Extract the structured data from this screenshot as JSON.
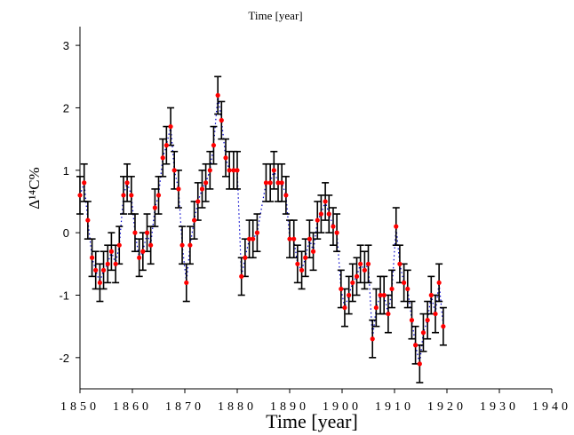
{
  "chart_data": {
    "type": "scatter",
    "top_title": "Time [year]",
    "xlabel": "Time [year]",
    "ylabel": "Δ¹⁴C%",
    "xlim": [
      1850,
      1940
    ],
    "ylim": [
      -2.5,
      3.3
    ],
    "x_ticks": [
      1850,
      1860,
      1870,
      1880,
      1890,
      1900,
      1910,
      1920,
      1930,
      1940
    ],
    "y_ticks": [
      3,
      2,
      1,
      0,
      -1,
      -2
    ],
    "colors": {
      "points": "#ff0000",
      "trend": "#0000cc",
      "error_bars": "#000000"
    },
    "series": [
      {
        "points": [
          {
            "x": 1850.0,
            "y": 0.6,
            "err": 0.3
          },
          {
            "x": 1850.8,
            "y": 0.8,
            "err": 0.3
          },
          {
            "x": 1851.5,
            "y": 0.2,
            "err": 0.3
          },
          {
            "x": 1852.3,
            "y": -0.4,
            "err": 0.3
          },
          {
            "x": 1853.0,
            "y": -0.6,
            "err": 0.3
          },
          {
            "x": 1853.8,
            "y": -0.8,
            "err": 0.3
          },
          {
            "x": 1854.5,
            "y": -0.6,
            "err": 0.3
          },
          {
            "x": 1855.3,
            "y": -0.5,
            "err": 0.3
          },
          {
            "x": 1856.0,
            "y": -0.3,
            "err": 0.3
          },
          {
            "x": 1856.8,
            "y": -0.5,
            "err": 0.3
          },
          {
            "x": 1857.5,
            "y": -0.2,
            "err": 0.3
          },
          {
            "x": 1858.3,
            "y": 0.6,
            "err": 0.3
          },
          {
            "x": 1859.0,
            "y": 0.8,
            "err": 0.3
          },
          {
            "x": 1859.8,
            "y": 0.6,
            "err": 0.3
          },
          {
            "x": 1860.5,
            "y": 0.0,
            "err": 0.3
          },
          {
            "x": 1861.3,
            "y": -0.4,
            "err": 0.3
          },
          {
            "x": 1862.0,
            "y": -0.3,
            "err": 0.3
          },
          {
            "x": 1862.8,
            "y": 0.0,
            "err": 0.3
          },
          {
            "x": 1863.5,
            "y": -0.2,
            "err": 0.3
          },
          {
            "x": 1864.3,
            "y": 0.4,
            "err": 0.3
          },
          {
            "x": 1865.0,
            "y": 0.6,
            "err": 0.3
          },
          {
            "x": 1865.8,
            "y": 1.2,
            "err": 0.3
          },
          {
            "x": 1866.5,
            "y": 1.4,
            "err": 0.3
          },
          {
            "x": 1867.3,
            "y": 1.7,
            "err": 0.3
          },
          {
            "x": 1868.0,
            "y": 1.0,
            "err": 0.3
          },
          {
            "x": 1868.8,
            "y": 0.7,
            "err": 0.3
          },
          {
            "x": 1869.5,
            "y": -0.2,
            "err": 0.3
          },
          {
            "x": 1870.3,
            "y": -0.8,
            "err": 0.3
          },
          {
            "x": 1871.0,
            "y": -0.2,
            "err": 0.3
          },
          {
            "x": 1871.8,
            "y": 0.2,
            "err": 0.3
          },
          {
            "x": 1872.5,
            "y": 0.5,
            "err": 0.3
          },
          {
            "x": 1873.3,
            "y": 0.7,
            "err": 0.3
          },
          {
            "x": 1874.0,
            "y": 0.8,
            "err": 0.3
          },
          {
            "x": 1874.8,
            "y": 1.0,
            "err": 0.3
          },
          {
            "x": 1875.5,
            "y": 1.4,
            "err": 0.3
          },
          {
            "x": 1876.3,
            "y": 2.2,
            "err": 0.3
          },
          {
            "x": 1877.0,
            "y": 1.8,
            "err": 0.3
          },
          {
            "x": 1877.8,
            "y": 1.2,
            "err": 0.3
          },
          {
            "x": 1878.5,
            "y": 1.0,
            "err": 0.3
          },
          {
            "x": 1879.3,
            "y": 1.0,
            "err": 0.3
          },
          {
            "x": 1880.0,
            "y": 1.0,
            "err": 0.3
          },
          {
            "x": 1880.8,
            "y": -0.7,
            "err": 0.3
          },
          {
            "x": 1881.5,
            "y": -0.4,
            "err": 0.3
          },
          {
            "x": 1882.3,
            "y": -0.1,
            "err": 0.3
          },
          {
            "x": 1883.0,
            "y": -0.1,
            "err": 0.3
          },
          {
            "x": 1883.8,
            "y": 0.0,
            "err": 0.3
          },
          {
            "x": 1885.5,
            "y": 0.8,
            "err": 0.3
          },
          {
            "x": 1886.3,
            "y": 0.8,
            "err": 0.3
          },
          {
            "x": 1887.0,
            "y": 1.0,
            "err": 0.3
          },
          {
            "x": 1887.8,
            "y": 0.8,
            "err": 0.3
          },
          {
            "x": 1888.5,
            "y": 0.8,
            "err": 0.3
          },
          {
            "x": 1889.3,
            "y": 0.6,
            "err": 0.3
          },
          {
            "x": 1890.0,
            "y": -0.1,
            "err": 0.3
          },
          {
            "x": 1890.8,
            "y": -0.1,
            "err": 0.3
          },
          {
            "x": 1891.5,
            "y": -0.5,
            "err": 0.3
          },
          {
            "x": 1892.3,
            "y": -0.6,
            "err": 0.3
          },
          {
            "x": 1893.0,
            "y": -0.4,
            "err": 0.3
          },
          {
            "x": 1893.8,
            "y": -0.1,
            "err": 0.3
          },
          {
            "x": 1894.5,
            "y": -0.3,
            "err": 0.3
          },
          {
            "x": 1895.3,
            "y": 0.2,
            "err": 0.3
          },
          {
            "x": 1896.0,
            "y": 0.3,
            "err": 0.3
          },
          {
            "x": 1896.8,
            "y": 0.5,
            "err": 0.3
          },
          {
            "x": 1897.5,
            "y": 0.3,
            "err": 0.3
          },
          {
            "x": 1898.3,
            "y": 0.1,
            "err": 0.3
          },
          {
            "x": 1899.0,
            "y": 0.0,
            "err": 0.3
          },
          {
            "x": 1899.8,
            "y": -0.9,
            "err": 0.3
          },
          {
            "x": 1900.5,
            "y": -1.2,
            "err": 0.3
          },
          {
            "x": 1901.3,
            "y": -1.0,
            "err": 0.3
          },
          {
            "x": 1902.0,
            "y": -0.8,
            "err": 0.3
          },
          {
            "x": 1902.8,
            "y": -0.7,
            "err": 0.3
          },
          {
            "x": 1903.5,
            "y": -0.5,
            "err": 0.3
          },
          {
            "x": 1904.3,
            "y": -0.6,
            "err": 0.3
          },
          {
            "x": 1905.0,
            "y": -0.5,
            "err": 0.3
          },
          {
            "x": 1905.8,
            "y": -1.7,
            "err": 0.3
          },
          {
            "x": 1906.5,
            "y": -1.2,
            "err": 0.3
          },
          {
            "x": 1907.3,
            "y": -1.0,
            "err": 0.3
          },
          {
            "x": 1908.0,
            "y": -1.0,
            "err": 0.3
          },
          {
            "x": 1908.8,
            "y": -1.3,
            "err": 0.3
          },
          {
            "x": 1909.5,
            "y": -0.9,
            "err": 0.3
          },
          {
            "x": 1910.3,
            "y": 0.1,
            "err": 0.3
          },
          {
            "x": 1911.0,
            "y": -0.5,
            "err": 0.3
          },
          {
            "x": 1911.8,
            "y": -0.8,
            "err": 0.3
          },
          {
            "x": 1912.5,
            "y": -0.9,
            "err": 0.3
          },
          {
            "x": 1913.3,
            "y": -1.4,
            "err": 0.3
          },
          {
            "x": 1914.0,
            "y": -1.8,
            "err": 0.3
          },
          {
            "x": 1914.8,
            "y": -2.1,
            "err": 0.3
          },
          {
            "x": 1915.5,
            "y": -1.6,
            "err": 0.3
          },
          {
            "x": 1916.3,
            "y": -1.4,
            "err": 0.3
          },
          {
            "x": 1917.0,
            "y": -1.0,
            "err": 0.3
          },
          {
            "x": 1917.8,
            "y": -1.3,
            "err": 0.3
          },
          {
            "x": 1918.5,
            "y": -0.8,
            "err": 0.3
          },
          {
            "x": 1919.3,
            "y": -1.5,
            "err": 0.3
          }
        ]
      }
    ]
  }
}
